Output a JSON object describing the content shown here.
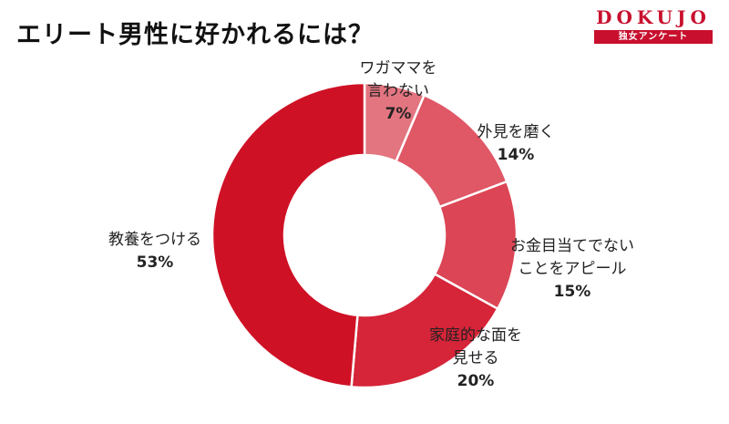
{
  "header": {
    "title": "エリート男性に好かれるには？"
  },
  "brand": {
    "name": "DOKUJO",
    "tagline": "独女アンケート",
    "color": "#c8102e"
  },
  "chart_data": {
    "type": "pie",
    "variant": "donut",
    "title": "エリート男性に好かれるには？",
    "start": "12 o'clock",
    "direction": "clockwise",
    "slices": [
      {
        "label_lines": [
          "ワガママを",
          "言わない"
        ],
        "value": 7,
        "display": "7%",
        "color": "#e37580"
      },
      {
        "label_lines": [
          "外見を磨く"
        ],
        "value": 14,
        "display": "14%",
        "color": "#e05766"
      },
      {
        "label_lines": [
          "お金目当てでない",
          "ことをアピール"
        ],
        "value": 15,
        "display": "15%",
        "color": "#dc4555"
      },
      {
        "label_lines": [
          "家庭的な面を",
          "見せる"
        ],
        "value": 20,
        "display": "20%",
        "color": "#d62438"
      },
      {
        "label_lines": [
          "教養をつける"
        ],
        "value": 53,
        "display": "53%",
        "color": "#cf1126"
      }
    ]
  }
}
